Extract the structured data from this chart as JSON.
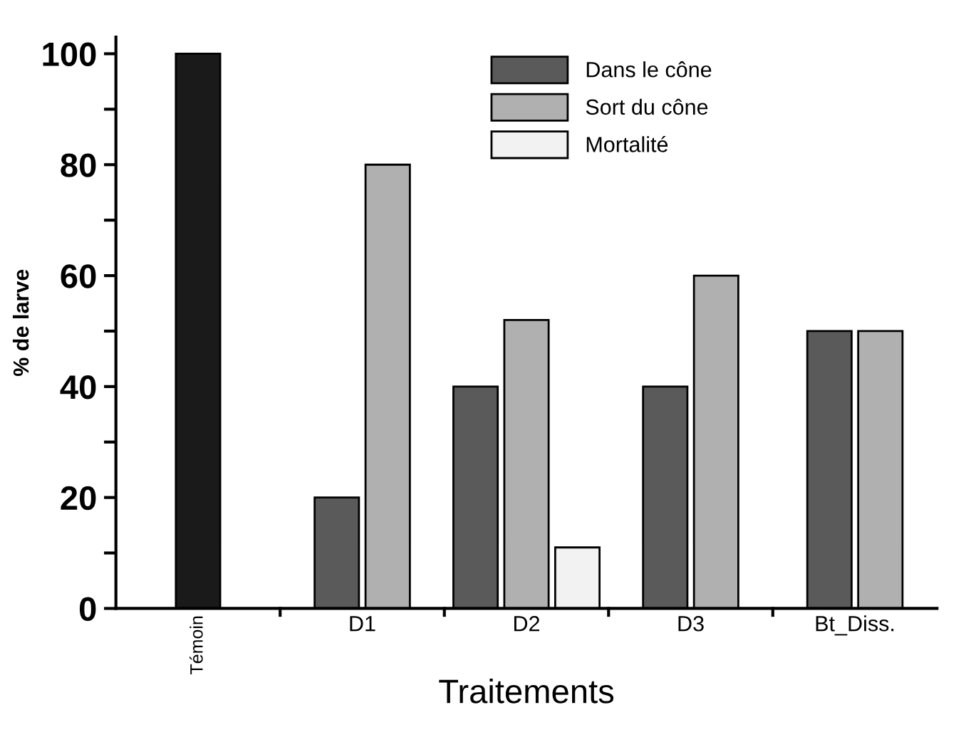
{
  "chart_data": {
    "type": "bar",
    "xlabel": "Traitements",
    "ylabel": "% de larve",
    "categories": [
      "Témoin",
      "D1",
      "D2",
      "D3",
      "Bt_Diss."
    ],
    "series": [
      {
        "name": "Dans le cône",
        "color": "#5a5a5a",
        "colors": [
          "#1a1a1a",
          "#5a5a5a",
          "#5a5a5a",
          "#5a5a5a",
          "#5a5a5a"
        ],
        "values": [
          100,
          20,
          40,
          40,
          50
        ]
      },
      {
        "name": "Sort du cône",
        "color": "#b0b0b0",
        "values": [
          null,
          80,
          52,
          60,
          50
        ]
      },
      {
        "name": "Mortalité",
        "color": "#f2f2f2",
        "values": [
          null,
          null,
          11,
          null,
          null
        ]
      }
    ],
    "ylim": [
      0,
      103
    ],
    "yticks": [
      0,
      {
        "value": 10,
        "label": null
      },
      20,
      {
        "value": 30,
        "label": null
      },
      40,
      {
        "value": 50,
        "label": null
      },
      60,
      {
        "value": 70,
        "label": null
      },
      80,
      {
        "value": 90,
        "label": null
      },
      100
    ],
    "grid": false,
    "legend": "top right"
  }
}
